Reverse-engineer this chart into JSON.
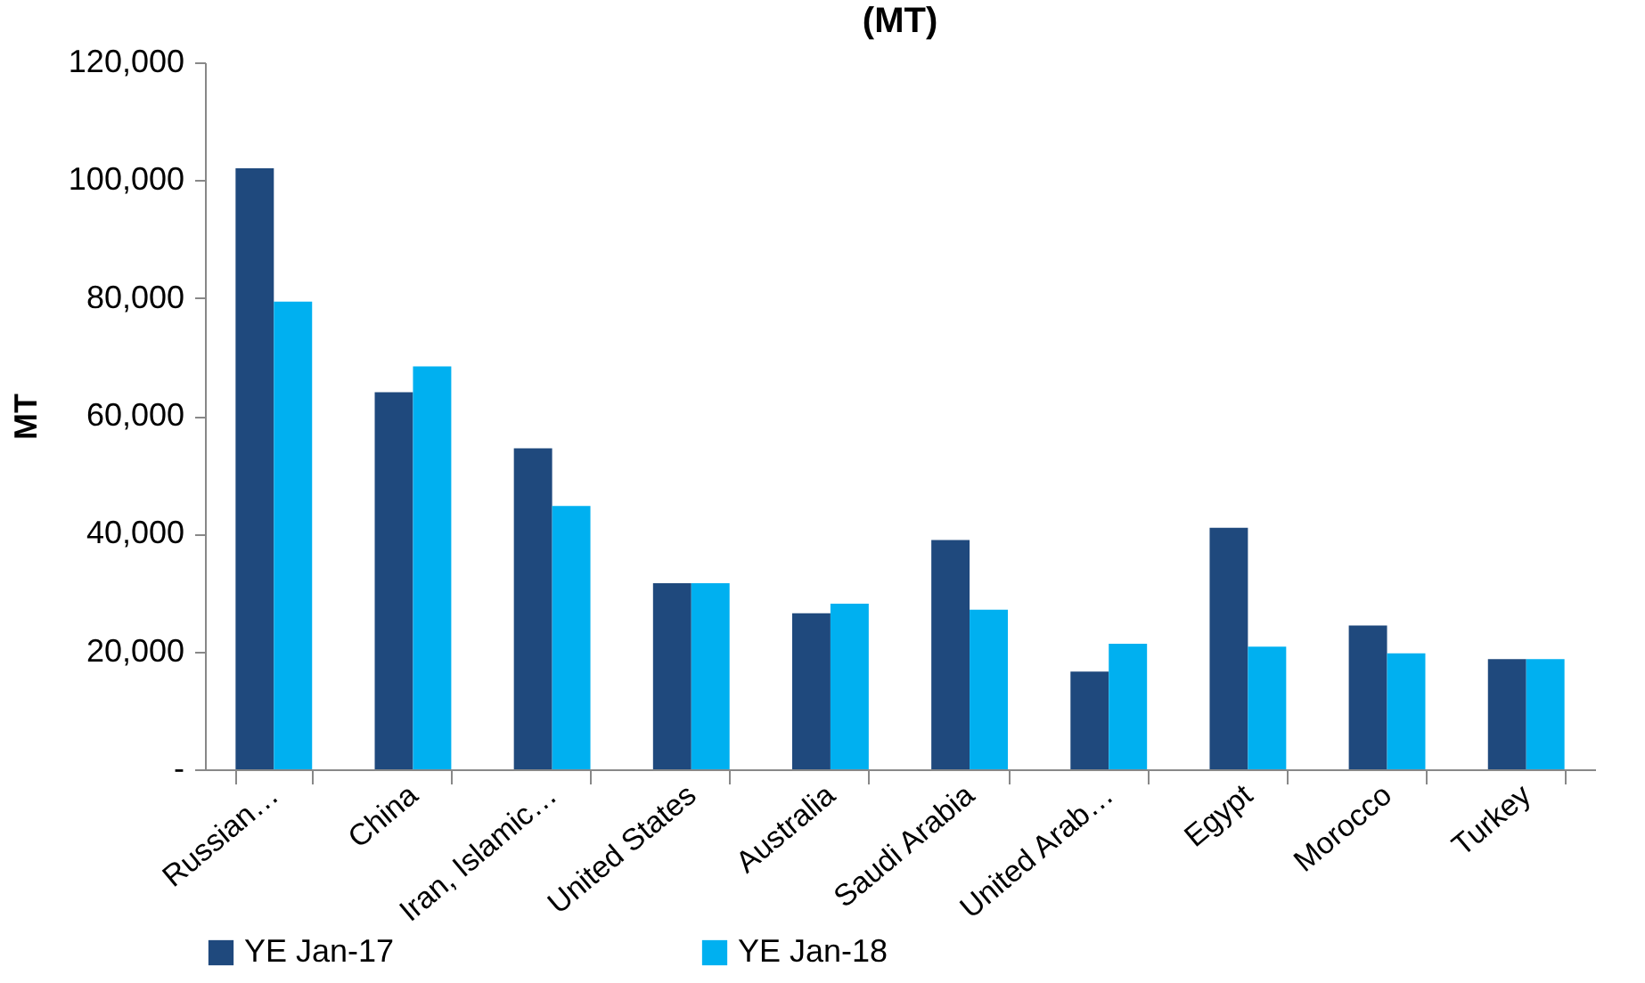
{
  "chart_data": {
    "type": "bar",
    "title": "(MT)",
    "ylabel": "MT",
    "categories": [
      "Russian…",
      "China",
      "Iran, Islamic…",
      "United States",
      "Australia",
      "Saudi Arabia",
      "United Arab…",
      "Egypt",
      "Morocco",
      "Turkey"
    ],
    "series": [
      {
        "name": "YE Jan-17",
        "color": "#1f497d",
        "values": [
          102000,
          64000,
          54500,
          31600,
          26500,
          38900,
          16600,
          41000,
          24400,
          18700
        ]
      },
      {
        "name": "YE Jan-18",
        "color": "#00b0f0",
        "values": [
          79400,
          68400,
          44700,
          31600,
          28100,
          27100,
          21300,
          20800,
          19700,
          18700
        ]
      }
    ],
    "ylim": [
      0,
      120000
    ],
    "yticks": [
      {
        "value": 0,
        "label": "-"
      },
      {
        "value": 20000,
        "label": "20,000"
      },
      {
        "value": 40000,
        "label": "40,000"
      },
      {
        "value": 60000,
        "label": "60,000"
      },
      {
        "value": 80000,
        "label": "80,000"
      },
      {
        "value": 100000,
        "label": "100,000"
      },
      {
        "value": 120000,
        "label": "120,000"
      }
    ],
    "grid": false,
    "legend": "bottom"
  }
}
